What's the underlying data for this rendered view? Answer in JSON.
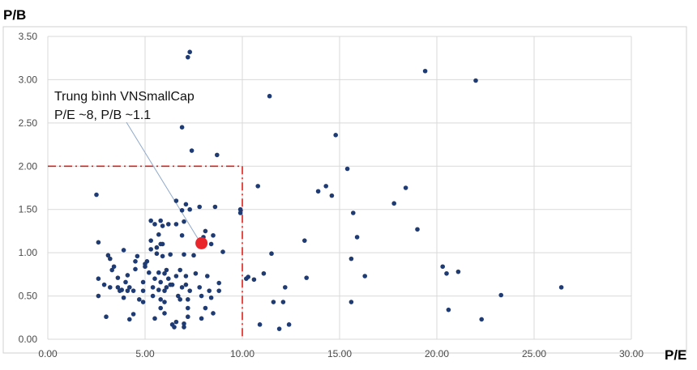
{
  "chart_data": {
    "type": "scatter",
    "title": "",
    "xlabel": "P/E",
    "ylabel": "P/B",
    "xlim": [
      0,
      30
    ],
    "ylim": [
      0,
      3.5
    ],
    "x_ticks": [
      "0.00",
      "5.00",
      "10.00",
      "15.00",
      "20.00",
      "25.00",
      "30.00"
    ],
    "y_ticks": [
      "0.00",
      "0.50",
      "1.00",
      "1.50",
      "2.00",
      "2.50",
      "3.00",
      "3.50"
    ],
    "grid": true,
    "legend": "none",
    "colors": {
      "points": "#1f3b73",
      "average": "#e8262b",
      "threshold": "#e0201c",
      "grid": "#d9d9d9"
    },
    "series": [
      {
        "points": [
          [
            2.5,
            1.67
          ],
          [
            2.6,
            1.12
          ],
          [
            2.6,
            0.7
          ],
          [
            2.6,
            0.5
          ],
          [
            2.9,
            0.63
          ],
          [
            3.0,
            0.26
          ],
          [
            3.1,
            0.97
          ],
          [
            3.2,
            0.93
          ],
          [
            3.2,
            0.6
          ],
          [
            3.3,
            0.8
          ],
          [
            3.4,
            0.84
          ],
          [
            3.6,
            0.71
          ],
          [
            3.6,
            0.6
          ],
          [
            3.7,
            0.56
          ],
          [
            3.8,
            0.57
          ],
          [
            3.9,
            1.03
          ],
          [
            3.9,
            0.48
          ],
          [
            4.0,
            0.66
          ],
          [
            4.1,
            0.56
          ],
          [
            4.1,
            0.74
          ],
          [
            4.2,
            0.6
          ],
          [
            4.2,
            0.23
          ],
          [
            4.4,
            0.29
          ],
          [
            4.4,
            0.56
          ],
          [
            4.5,
            0.81
          ],
          [
            4.5,
            0.9
          ],
          [
            4.6,
            0.96
          ],
          [
            4.7,
            0.46
          ],
          [
            4.9,
            0.66
          ],
          [
            4.9,
            0.56
          ],
          [
            4.9,
            0.43
          ],
          [
            5.0,
            0.84
          ],
          [
            5.0,
            0.87
          ],
          [
            5.1,
            0.9
          ],
          [
            5.2,
            0.77
          ],
          [
            5.3,
            1.14
          ],
          [
            5.3,
            1.04
          ],
          [
            5.3,
            1.37
          ],
          [
            5.4,
            0.6
          ],
          [
            5.4,
            0.5
          ],
          [
            5.5,
            0.7
          ],
          [
            5.5,
            0.24
          ],
          [
            5.5,
            1.33
          ],
          [
            5.6,
            0.99
          ],
          [
            5.6,
            1.06
          ],
          [
            5.7,
            1.21
          ],
          [
            5.7,
            0.77
          ],
          [
            5.7,
            0.57
          ],
          [
            5.8,
            1.1
          ],
          [
            5.8,
            0.36
          ],
          [
            5.8,
            0.46
          ],
          [
            5.8,
            0.66
          ],
          [
            5.8,
            1.37
          ],
          [
            5.9,
            0.96
          ],
          [
            5.9,
            1.1
          ],
          [
            5.9,
            1.31
          ],
          [
            6.0,
            0.3
          ],
          [
            6.0,
            0.76
          ],
          [
            6.0,
            0.56
          ],
          [
            6.0,
            0.43
          ],
          [
            6.1,
            0.8
          ],
          [
            6.1,
            0.6
          ],
          [
            6.2,
            0.7
          ],
          [
            6.2,
            1.33
          ],
          [
            6.3,
            0.63
          ],
          [
            6.3,
            0.98
          ],
          [
            6.4,
            0.63
          ],
          [
            6.4,
            0.17
          ],
          [
            6.5,
            0.14
          ],
          [
            6.6,
            0.2
          ],
          [
            6.6,
            0.73
          ],
          [
            6.6,
            1.33
          ],
          [
            6.6,
            1.6
          ],
          [
            6.7,
            0.5
          ],
          [
            6.8,
            0.8
          ],
          [
            6.8,
            0.46
          ],
          [
            6.9,
            0.6
          ],
          [
            6.9,
            1.2
          ],
          [
            6.9,
            1.49
          ],
          [
            6.9,
            2.45
          ],
          [
            7.0,
            0.98
          ],
          [
            7.0,
            1.36
          ],
          [
            7.0,
            0.18
          ],
          [
            7.0,
            0.14
          ],
          [
            7.1,
            0.73
          ],
          [
            7.1,
            0.63
          ],
          [
            7.1,
            1.56
          ],
          [
            7.2,
            0.36
          ],
          [
            7.2,
            0.26
          ],
          [
            7.2,
            0.46
          ],
          [
            7.2,
            3.26
          ],
          [
            7.3,
            3.32
          ],
          [
            7.3,
            0.56
          ],
          [
            7.3,
            1.5
          ],
          [
            7.4,
            2.18
          ],
          [
            7.5,
            0.97
          ],
          [
            7.6,
            0.76
          ],
          [
            7.8,
            1.53
          ],
          [
            7.8,
            0.6
          ],
          [
            7.9,
            0.5
          ],
          [
            7.9,
            0.24
          ],
          [
            8.0,
            1.18
          ],
          [
            8.1,
            0.36
          ],
          [
            8.1,
            1.25
          ],
          [
            8.2,
            0.73
          ],
          [
            8.3,
            0.56
          ],
          [
            8.4,
            0.48
          ],
          [
            8.4,
            1.1
          ],
          [
            8.5,
            0.3
          ],
          [
            8.5,
            1.2
          ],
          [
            8.6,
            1.53
          ],
          [
            8.7,
            2.13
          ],
          [
            8.8,
            0.56
          ],
          [
            8.8,
            0.65
          ],
          [
            9.0,
            1.01
          ],
          [
            9.9,
            1.5
          ],
          [
            9.9,
            1.46
          ],
          [
            10.2,
            0.7
          ],
          [
            10.3,
            0.72
          ],
          [
            10.6,
            0.69
          ],
          [
            10.8,
            1.77
          ],
          [
            10.9,
            0.17
          ],
          [
            11.1,
            0.76
          ],
          [
            11.4,
            2.81
          ],
          [
            11.5,
            0.99
          ],
          [
            11.6,
            0.43
          ],
          [
            11.9,
            0.12
          ],
          [
            12.1,
            0.43
          ],
          [
            12.2,
            0.6
          ],
          [
            12.4,
            0.17
          ],
          [
            13.2,
            1.14
          ],
          [
            13.3,
            0.71
          ],
          [
            13.9,
            1.71
          ],
          [
            14.3,
            1.77
          ],
          [
            14.6,
            1.66
          ],
          [
            14.8,
            2.36
          ],
          [
            15.4,
            1.97
          ],
          [
            15.6,
            0.93
          ],
          [
            15.6,
            0.43
          ],
          [
            15.7,
            1.46
          ],
          [
            15.9,
            1.18
          ],
          [
            16.3,
            0.73
          ],
          [
            17.8,
            1.57
          ],
          [
            18.4,
            1.75
          ],
          [
            19.0,
            1.27
          ],
          [
            19.4,
            3.1
          ],
          [
            20.3,
            0.84
          ],
          [
            20.5,
            0.76
          ],
          [
            20.6,
            0.34
          ],
          [
            21.1,
            0.78
          ],
          [
            22.0,
            2.99
          ],
          [
            22.3,
            0.23
          ],
          [
            23.3,
            0.51
          ],
          [
            26.4,
            0.6
          ]
        ]
      }
    ],
    "average_point": [
      7.9,
      1.11
    ],
    "threshold": {
      "pe": 10,
      "pb": 2
    },
    "annotation": {
      "line1": "Trung bình VNSmallCap",
      "line2": "P/E ~8, P/B ~1.1"
    }
  }
}
